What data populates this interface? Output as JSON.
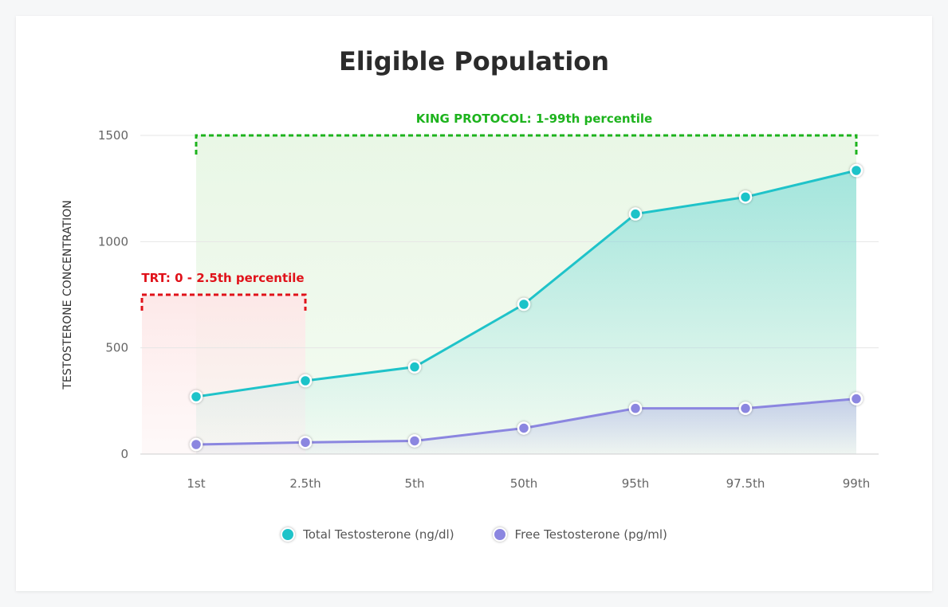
{
  "chart_data": {
    "type": "line",
    "title": "Eligible Population",
    "ylabel": "TESTOSTERONE CONCENTRATION",
    "xlabel": "",
    "categories": [
      "1st",
      "2.5th",
      "5th",
      "50th",
      "95th",
      "97.5th",
      "99th"
    ],
    "yticks": [
      0,
      500,
      1000,
      1500
    ],
    "ylim": [
      0,
      1500
    ],
    "grid": true,
    "legend_position": "bottom",
    "series": [
      {
        "name": "Total Testosterone (ng/dl)",
        "color": "#1fc3c9",
        "values": [
          270,
          345,
          410,
          705,
          1130,
          1210,
          1335
        ]
      },
      {
        "name": "Free Testosterone (pg/ml)",
        "color": "#8b86e0",
        "values": [
          45,
          55,
          62,
          122,
          215,
          215,
          260
        ]
      }
    ],
    "annotations": [
      {
        "label": "KING PROTOCOL: 1-99th percentile",
        "color": "#1db31d",
        "x_start": "1st",
        "x_end": "99th",
        "y_top": 1500
      },
      {
        "label": "TRT: 0 - 2.5th percentile",
        "color": "#e0121a",
        "x_start": "0",
        "x_end": "2.5th",
        "y_top": 750
      }
    ]
  }
}
